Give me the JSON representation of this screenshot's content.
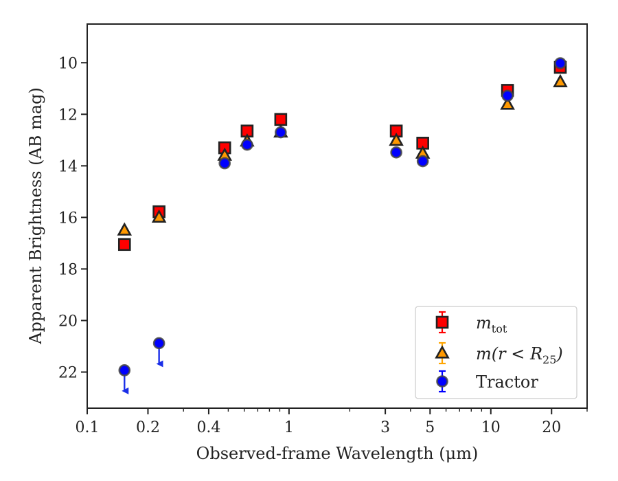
{
  "chart_data": {
    "type": "scatter",
    "xlabel": "Observed-frame Wavelength (μm)",
    "ylabel": "Apparent Brightness (AB mag)",
    "x_scale": "log",
    "y_inverted": true,
    "xlim": [
      0.1,
      30
    ],
    "ylim": [
      23.4,
      8.5
    ],
    "x_ticks": [
      {
        "value": 0.1,
        "label": "0.1"
      },
      {
        "value": 0.2,
        "label": "0.2"
      },
      {
        "value": 0.4,
        "label": "0.4"
      },
      {
        "value": 1,
        "label": "1"
      },
      {
        "value": 3,
        "label": "3"
      },
      {
        "value": 5,
        "label": "5"
      },
      {
        "value": 10,
        "label": "10"
      },
      {
        "value": 20,
        "label": "20"
      }
    ],
    "y_ticks": [
      10,
      12,
      14,
      16,
      18,
      20,
      22
    ],
    "grid": false,
    "legend_position": "bottom-right",
    "series": [
      {
        "key": "tot",
        "legend_main": "m",
        "legend_sub": "tot",
        "marker": "square",
        "face_color": "#ff0000",
        "errorbar_color": "#ff0000",
        "points": [
          {
            "x": 0.153,
            "y": 17.05
          },
          {
            "x": 0.227,
            "y": 15.78
          },
          {
            "x": 0.48,
            "y": 13.3
          },
          {
            "x": 0.62,
            "y": 12.65
          },
          {
            "x": 0.91,
            "y": 12.2
          },
          {
            "x": 3.4,
            "y": 12.65
          },
          {
            "x": 4.6,
            "y": 13.12
          },
          {
            "x": 12.1,
            "y": 11.07
          },
          {
            "x": 22.1,
            "y": 10.18
          }
        ]
      },
      {
        "key": "r25",
        "legend_main": "m(r < R",
        "legend_sub": "25",
        "legend_end": ")",
        "marker": "triangle",
        "face_color": "#ff9900",
        "errorbar_color": "#ffa500",
        "points": [
          {
            "x": 0.153,
            "y": 16.5
          },
          {
            "x": 0.227,
            "y": 16.0
          },
          {
            "x": 0.48,
            "y": 13.6
          },
          {
            "x": 0.62,
            "y": 13.05
          },
          {
            "x": 0.91,
            "y": 12.7
          },
          {
            "x": 3.4,
            "y": 13.02
          },
          {
            "x": 4.6,
            "y": 13.52
          },
          {
            "x": 12.1,
            "y": 11.62
          },
          {
            "x": 22.1,
            "y": 10.75
          }
        ]
      },
      {
        "key": "tractor",
        "legend_main": "Tractor",
        "marker": "circle",
        "face_color": "#0000ff",
        "errorbar_color": "#0000ff",
        "points": [
          {
            "x": 0.153,
            "y": 21.93,
            "upper_limit": true
          },
          {
            "x": 0.227,
            "y": 20.88,
            "upper_limit": true
          },
          {
            "x": 0.48,
            "y": 13.9
          },
          {
            "x": 0.62,
            "y": 13.18
          },
          {
            "x": 0.91,
            "y": 12.7
          },
          {
            "x": 3.4,
            "y": 13.48
          },
          {
            "x": 4.6,
            "y": 13.82
          },
          {
            "x": 12.1,
            "y": 11.28
          },
          {
            "x": 22.1,
            "y": 10.02
          }
        ]
      }
    ]
  }
}
